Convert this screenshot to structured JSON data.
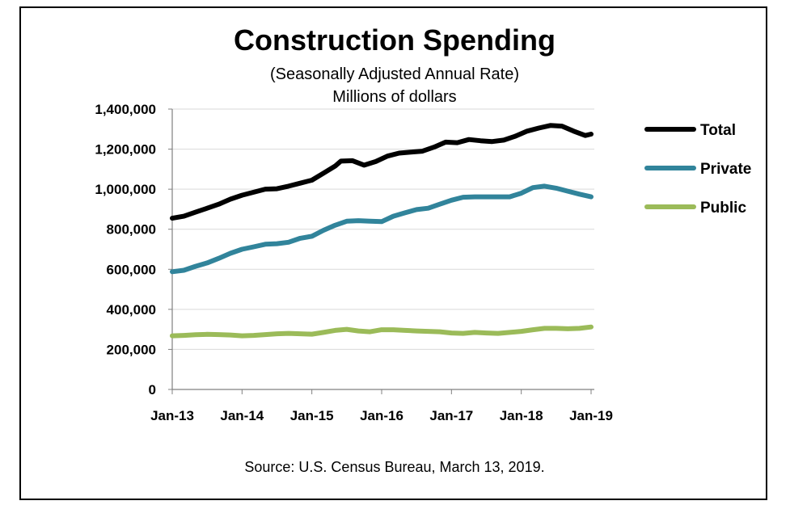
{
  "chart_data": {
    "type": "line",
    "title": "Construction Spending",
    "subtitle_lines": [
      "(Seasonally Adjusted Annual Rate)",
      "Millions of dollars"
    ],
    "source": "Source: U.S. Census Bureau, March 13, 2019.",
    "xlabel": "",
    "ylabel": "",
    "ylim": [
      0,
      1400000
    ],
    "yticks": [
      0,
      200000,
      400000,
      600000,
      800000,
      1000000,
      1200000,
      1400000
    ],
    "ytick_labels": [
      "0",
      "200,000",
      "400,000",
      "600,000",
      "800,000",
      "1,000,000",
      "1,200,000",
      "1,400,000"
    ],
    "x_tick_labels": [
      "Jan-13",
      "Jan-14",
      "Jan-15",
      "Jan-16",
      "Jan-17",
      "Jan-18",
      "Jan-19"
    ],
    "x_range": [
      "2013-01",
      "2019-01"
    ],
    "grid": "horizontal",
    "legend_position": "right",
    "series": [
      {
        "name": "Total",
        "color": "#000000",
        "points": [
          [
            "2013-01",
            855000
          ],
          [
            "2013-03",
            865000
          ],
          [
            "2013-05",
            885000
          ],
          [
            "2013-07",
            905000
          ],
          [
            "2013-09",
            925000
          ],
          [
            "2013-11",
            950000
          ],
          [
            "2014-01",
            970000
          ],
          [
            "2014-03",
            985000
          ],
          [
            "2014-05",
            1000000
          ],
          [
            "2014-07",
            1002000
          ],
          [
            "2014-09",
            1015000
          ],
          [
            "2014-11",
            1030000
          ],
          [
            "2015-01",
            1045000
          ],
          [
            "2015-03",
            1080000
          ],
          [
            "2015-05",
            1115000
          ],
          [
            "2015-06",
            1140000
          ],
          [
            "2015-08",
            1142000
          ],
          [
            "2015-10",
            1120000
          ],
          [
            "2015-12",
            1138000
          ],
          [
            "2016-02",
            1165000
          ],
          [
            "2016-04",
            1180000
          ],
          [
            "2016-06",
            1185000
          ],
          [
            "2016-08",
            1190000
          ],
          [
            "2016-10",
            1210000
          ],
          [
            "2016-12",
            1235000
          ],
          [
            "2017-02",
            1232000
          ],
          [
            "2017-04",
            1248000
          ],
          [
            "2017-06",
            1242000
          ],
          [
            "2017-08",
            1238000
          ],
          [
            "2017-10",
            1245000
          ],
          [
            "2017-12",
            1265000
          ],
          [
            "2018-02",
            1290000
          ],
          [
            "2018-04",
            1305000
          ],
          [
            "2018-06",
            1318000
          ],
          [
            "2018-08",
            1315000
          ],
          [
            "2018-10",
            1290000
          ],
          [
            "2018-12",
            1268000
          ],
          [
            "2019-01",
            1275000
          ]
        ]
      },
      {
        "name": "Private",
        "color": "#31849b",
        "points": [
          [
            "2013-01",
            588000
          ],
          [
            "2013-03",
            595000
          ],
          [
            "2013-05",
            615000
          ],
          [
            "2013-07",
            632000
          ],
          [
            "2013-09",
            655000
          ],
          [
            "2013-11",
            680000
          ],
          [
            "2014-01",
            700000
          ],
          [
            "2014-03",
            712000
          ],
          [
            "2014-05",
            725000
          ],
          [
            "2014-07",
            728000
          ],
          [
            "2014-09",
            735000
          ],
          [
            "2014-11",
            755000
          ],
          [
            "2015-01",
            765000
          ],
          [
            "2015-03",
            795000
          ],
          [
            "2015-05",
            820000
          ],
          [
            "2015-07",
            840000
          ],
          [
            "2015-09",
            843000
          ],
          [
            "2015-11",
            840000
          ],
          [
            "2016-01",
            838000
          ],
          [
            "2016-03",
            865000
          ],
          [
            "2016-05",
            882000
          ],
          [
            "2016-07",
            898000
          ],
          [
            "2016-09",
            905000
          ],
          [
            "2016-11",
            925000
          ],
          [
            "2017-01",
            945000
          ],
          [
            "2017-03",
            960000
          ],
          [
            "2017-05",
            962000
          ],
          [
            "2017-07",
            962000
          ],
          [
            "2017-09",
            962000
          ],
          [
            "2017-11",
            962000
          ],
          [
            "2018-01",
            980000
          ],
          [
            "2018-03",
            1008000
          ],
          [
            "2018-05",
            1015000
          ],
          [
            "2018-07",
            1005000
          ],
          [
            "2018-09",
            990000
          ],
          [
            "2018-11",
            975000
          ],
          [
            "2019-01",
            962000
          ]
        ]
      },
      {
        "name": "Public",
        "color": "#9bbb59",
        "points": [
          [
            "2013-01",
            268000
          ],
          [
            "2013-03",
            270000
          ],
          [
            "2013-05",
            273000
          ],
          [
            "2013-07",
            275000
          ],
          [
            "2013-09",
            274000
          ],
          [
            "2013-11",
            272000
          ],
          [
            "2014-01",
            268000
          ],
          [
            "2014-03",
            270000
          ],
          [
            "2014-05",
            274000
          ],
          [
            "2014-07",
            278000
          ],
          [
            "2014-09",
            280000
          ],
          [
            "2014-11",
            278000
          ],
          [
            "2015-01",
            276000
          ],
          [
            "2015-03",
            285000
          ],
          [
            "2015-05",
            295000
          ],
          [
            "2015-07",
            300000
          ],
          [
            "2015-09",
            292000
          ],
          [
            "2015-11",
            288000
          ],
          [
            "2016-01",
            298000
          ],
          [
            "2016-03",
            298000
          ],
          [
            "2016-05",
            295000
          ],
          [
            "2016-07",
            292000
          ],
          [
            "2016-09",
            290000
          ],
          [
            "2016-11",
            288000
          ],
          [
            "2017-01",
            282000
          ],
          [
            "2017-03",
            280000
          ],
          [
            "2017-05",
            285000
          ],
          [
            "2017-07",
            282000
          ],
          [
            "2017-09",
            280000
          ],
          [
            "2017-11",
            285000
          ],
          [
            "2018-01",
            290000
          ],
          [
            "2018-03",
            298000
          ],
          [
            "2018-05",
            305000
          ],
          [
            "2018-07",
            305000
          ],
          [
            "2018-09",
            303000
          ],
          [
            "2018-11",
            305000
          ],
          [
            "2019-01",
            312000
          ]
        ]
      }
    ]
  }
}
